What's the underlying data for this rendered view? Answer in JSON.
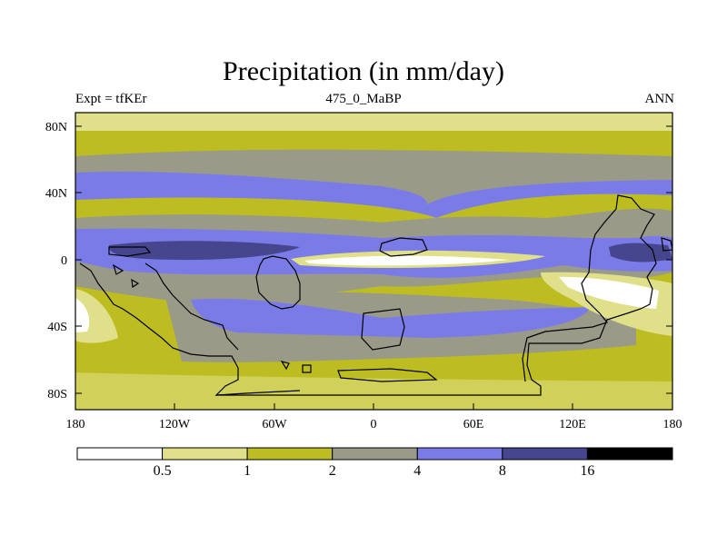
{
  "title": "Precipitation (in mm/day)",
  "subtitle_left": "Expt = tfKEr",
  "subtitle_center": "475_0_MaBP",
  "subtitle_right": "ANN",
  "lat_ticks": [
    "80N",
    "40N",
    "0",
    "40S",
    "80S"
  ],
  "lon_ticks": [
    "180",
    "120W",
    "60W",
    "0",
    "60E",
    "120E",
    "180"
  ],
  "colorbar": {
    "levels": [
      "0.5",
      "1",
      "2",
      "4",
      "8",
      "16"
    ],
    "colors": [
      "#ffffff",
      "#e0e08a",
      "#bdbd22",
      "#9a9a88",
      "#7b7be8",
      "#46468e",
      "#000000"
    ]
  },
  "palette": {
    "white": "#ffffff",
    "light_yellow": "#e0e08a",
    "olive": "#bdbd22",
    "gray": "#9a9a88",
    "blue": "#7b7be8",
    "dark_blue": "#46468e"
  }
}
